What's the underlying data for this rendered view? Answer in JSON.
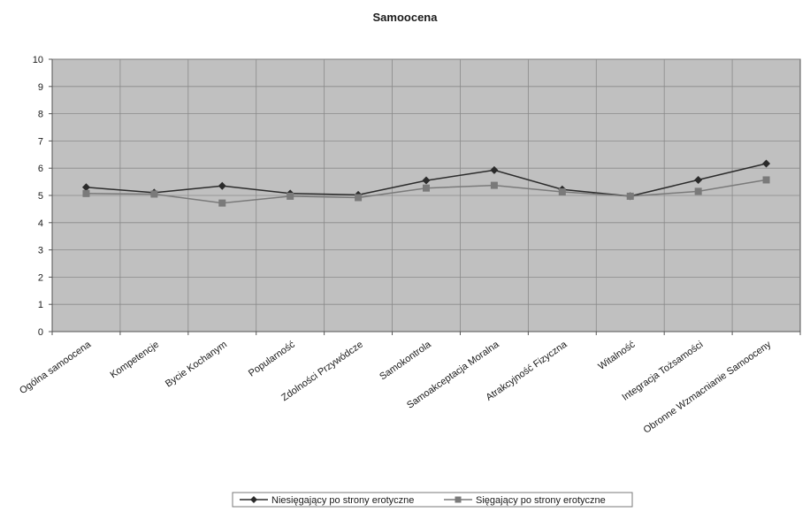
{
  "chart_data": {
    "type": "line",
    "title": "Samoocena",
    "xlabel": "",
    "ylabel": "",
    "ylim": [
      0,
      10
    ],
    "yticks": [
      0,
      1,
      2,
      3,
      4,
      5,
      6,
      7,
      8,
      9,
      10
    ],
    "grid": true,
    "legend_position": "bottom",
    "categories": [
      "Ogólna samoocena",
      "Kompetencje",
      "Bycie Kochanym",
      "Popularność",
      "Zdolności Przywódcze",
      "Samokontrola",
      "Samoakceptacja Moralna",
      "Atrakcyjność Fizyczna",
      "Witalność",
      "Integracja Tożsamości",
      "Obronne Wzmacnianie Samooceny"
    ],
    "series": [
      {
        "name": "Niesięgający po strony erotyczne",
        "marker": "diamond",
        "color": "#2b2b2b",
        "values": [
          5.3,
          5.1,
          5.35,
          5.07,
          5.02,
          5.55,
          5.93,
          5.22,
          4.97,
          5.57,
          6.17
        ]
      },
      {
        "name": "Sięgający po strony erotyczne",
        "marker": "square",
        "color": "#7a7a7a",
        "values": [
          5.07,
          5.05,
          4.72,
          4.97,
          4.92,
          5.27,
          5.37,
          5.13,
          4.97,
          5.15,
          5.57
        ]
      }
    ],
    "colors": {
      "plot_background": "#c0c0c0",
      "gridline": "#8a8a8a"
    }
  }
}
